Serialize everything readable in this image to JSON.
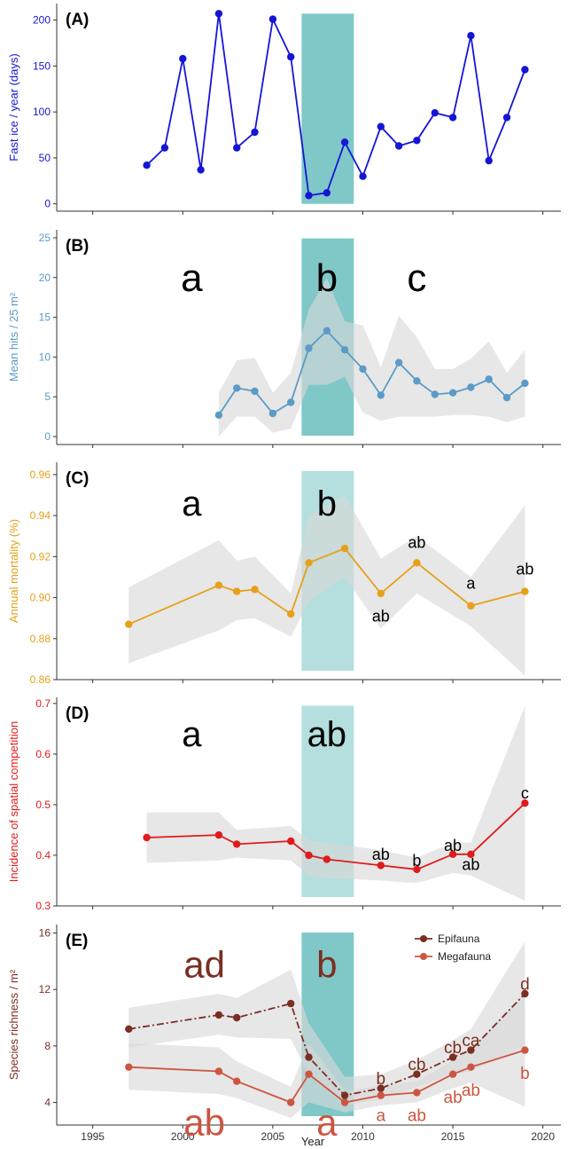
{
  "figure": {
    "xlabel": "Year",
    "xticks": [
      1995,
      2000,
      2005,
      2010,
      2015,
      2020
    ],
    "xlim": [
      1993,
      2021
    ],
    "shade_years": [
      2006.6,
      2009.5
    ],
    "colors": {
      "shade": "#4db3b1",
      "band": "#d9d9d9",
      "axis": "#333333",
      "fast_ice": "#1515d6",
      "mean_hits": "#5b9bc6",
      "mortality": "#e6a019",
      "competition": "#e01b1b",
      "epifauna": "#7b2e22",
      "megafauna": "#cc5540"
    }
  },
  "chart_data": [
    {
      "id": "A",
      "type": "line",
      "panel_label": "(A)",
      "ylabel": "Fast ice / year (days)",
      "ylim": [
        -8,
        218
      ],
      "yticks": [
        0,
        50,
        100,
        150,
        200
      ],
      "tick_labels": [
        "0",
        "50",
        "100",
        "150",
        "200"
      ],
      "shade_alpha": 0.72,
      "series": [
        {
          "color_key": "fast_ice",
          "dashed": false,
          "x": [
            1998,
            1999,
            2000,
            2001,
            2002,
            2003,
            2004,
            2005,
            2006,
            2007,
            2008,
            2009,
            2010,
            2011,
            2012,
            2013,
            2014,
            2015,
            2016,
            2017,
            2018,
            2019
          ],
          "y": [
            42,
            61,
            158,
            37,
            207,
            61,
            78,
            201,
            160,
            9,
            12,
            67,
            30,
            84,
            63,
            69,
            99,
            94,
            183,
            47,
            94,
            146
          ]
        }
      ],
      "group_letters": [],
      "point_letters": []
    },
    {
      "id": "B",
      "type": "line",
      "panel_label": "(B)",
      "ylabel": "Mean hits / 25 m²",
      "ylim": [
        -1,
        26
      ],
      "yticks": [
        0,
        5,
        10,
        15,
        20,
        25
      ],
      "tick_labels": [
        "0",
        "5",
        "10",
        "15",
        "20",
        "25"
      ],
      "shade_alpha": 0.72,
      "series": [
        {
          "color_key": "mean_hits",
          "dashed": false,
          "x": [
            2002,
            2003,
            2004,
            2005,
            2006,
            2007,
            2008,
            2009,
            2010,
            2011,
            2012,
            2013,
            2014,
            2015,
            2016,
            2017,
            2018,
            2019
          ],
          "y": [
            2.7,
            6.1,
            5.7,
            2.9,
            4.3,
            11.1,
            13.3,
            10.9,
            8.5,
            5.2,
            9.3,
            7.0,
            5.3,
            5.5,
            6.2,
            7.2,
            4.9,
            6.7
          ],
          "lower": [
            0.0,
            2.5,
            2.5,
            0.5,
            1.0,
            6.5,
            6.5,
            7.5,
            3.0,
            2.0,
            2.5,
            2.5,
            2.5,
            2.7,
            2.7,
            2.5,
            1.8,
            2.5
          ],
          "upper": [
            5.5,
            9.6,
            9.9,
            5.5,
            8.0,
            16.0,
            19.9,
            14.5,
            14.0,
            8.7,
            15.2,
            12.5,
            8.5,
            8.5,
            9.8,
            12.0,
            8.0,
            10.9
          ]
        }
      ],
      "group_letters": [
        {
          "text": "a",
          "x": 2000.5,
          "y": 20,
          "color_key": "axis"
        },
        {
          "text": "b",
          "x": 2008.0,
          "y": 20,
          "color_key": "axis"
        },
        {
          "text": "c",
          "x": 2013.0,
          "y": 20,
          "color_key": "axis"
        }
      ],
      "point_letters": []
    },
    {
      "id": "C",
      "type": "line",
      "panel_label": "(C)",
      "ylabel": "Annual mortality (%)",
      "ylim": [
        0.86,
        0.966
      ],
      "yticks": [
        0.86,
        0.88,
        0.9,
        0.92,
        0.94,
        0.96
      ],
      "tick_labels": [
        "0.86",
        "0.88",
        "0.90",
        "0.92",
        "0.94",
        "0.96"
      ],
      "shade_alpha": 0.42,
      "series": [
        {
          "color_key": "mortality",
          "dashed": false,
          "x": [
            1997,
            2002,
            2003,
            2004,
            2006,
            2007,
            2009,
            2011,
            2013,
            2016,
            2019
          ],
          "y": [
            0.887,
            0.906,
            0.903,
            0.904,
            0.892,
            0.917,
            0.924,
            0.902,
            0.917,
            0.896,
            0.903
          ],
          "lower": [
            0.868,
            0.884,
            0.889,
            0.89,
            0.881,
            0.898,
            0.91,
            0.885,
            0.902,
            0.886,
            0.862
          ],
          "upper": [
            0.905,
            0.928,
            0.918,
            0.92,
            0.902,
            0.94,
            0.95,
            0.919,
            0.93,
            0.91,
            0.945
          ]
        }
      ],
      "group_letters": [
        {
          "text": "a",
          "x": 2000.5,
          "y": 0.946,
          "color_key": "axis"
        },
        {
          "text": "b",
          "x": 2008.0,
          "y": 0.946,
          "color_key": "axis"
        }
      ],
      "point_letters": [
        {
          "text": "ab",
          "x": 2011,
          "y": 0.891,
          "color_key": "axis"
        },
        {
          "text": "ab",
          "x": 2013,
          "y": 0.927,
          "color_key": "axis"
        },
        {
          "text": "a",
          "x": 2016,
          "y": 0.907,
          "color_key": "axis"
        },
        {
          "text": "ab",
          "x": 2019,
          "y": 0.914,
          "color_key": "axis"
        }
      ]
    },
    {
      "id": "D",
      "type": "line",
      "panel_label": "(D)",
      "ylabel": "Incidence of spatial competition",
      "ylim": [
        0.3,
        0.712
      ],
      "yticks": [
        0.3,
        0.4,
        0.5,
        0.6,
        0.7
      ],
      "tick_labels": [
        "0.3",
        "0.4",
        "0.5",
        "0.6",
        "0.7"
      ],
      "shade_alpha": 0.42,
      "series": [
        {
          "color_key": "competition",
          "dashed": false,
          "x": [
            1998,
            2002,
            2003,
            2006,
            2007,
            2008,
            2011,
            2013,
            2015,
            2016,
            2019
          ],
          "y": [
            0.435,
            0.44,
            0.422,
            0.428,
            0.4,
            0.392,
            0.38,
            0.372,
            0.402,
            0.402,
            0.503
          ],
          "lower": [
            0.385,
            0.39,
            0.395,
            0.39,
            0.36,
            0.355,
            0.35,
            0.345,
            0.365,
            0.36,
            0.31
          ],
          "upper": [
            0.485,
            0.485,
            0.45,
            0.458,
            0.43,
            0.425,
            0.41,
            0.395,
            0.425,
            0.425,
            0.695
          ]
        }
      ],
      "group_letters": [
        {
          "text": "a",
          "x": 2000.5,
          "y": 0.64,
          "color_key": "axis"
        },
        {
          "text": "ab",
          "x": 2008.0,
          "y": 0.64,
          "color_key": "axis"
        }
      ],
      "point_letters": [
        {
          "text": "ab",
          "x": 2011,
          "y": 0.402,
          "color_key": "axis"
        },
        {
          "text": "b",
          "x": 2013,
          "y": 0.39,
          "color_key": "axis"
        },
        {
          "text": "ab",
          "x": 2015,
          "y": 0.42,
          "color_key": "axis"
        },
        {
          "text": "ab",
          "x": 2016,
          "y": 0.382,
          "color_key": "axis"
        },
        {
          "text": "c",
          "x": 2019,
          "y": 0.523,
          "color_key": "axis"
        }
      ]
    },
    {
      "id": "E",
      "type": "line",
      "panel_label": "(E)",
      "ylabel": "Species richness / m²",
      "ylim": [
        2.4,
        16.6
      ],
      "yticks": [
        4,
        8,
        12,
        16
      ],
      "tick_labels": [
        "4",
        "8",
        "12",
        "16"
      ],
      "shade_alpha": 0.72,
      "legend": {
        "position": "top-right"
      },
      "series": [
        {
          "name": "Epifauna",
          "color_key": "epifauna",
          "dashed": true,
          "x": [
            1997,
            2002,
            2003,
            2006,
            2007,
            2009,
            2011,
            2013,
            2015,
            2016,
            2019
          ],
          "y": [
            9.2,
            10.2,
            10.0,
            11.0,
            7.2,
            4.5,
            5.0,
            6.0,
            7.2,
            7.7,
            11.7
          ],
          "lower": [
            7.9,
            8.8,
            8.6,
            8.5,
            5.9,
            3.8,
            4.2,
            5.1,
            6.0,
            6.2,
            8.0
          ],
          "upper": [
            10.7,
            11.7,
            11.4,
            13.4,
            9.6,
            5.8,
            6.0,
            7.0,
            8.4,
            9.2,
            15.4
          ]
        },
        {
          "name": "Megafauna",
          "color_key": "megafauna",
          "dashed": false,
          "x": [
            1997,
            2002,
            2003,
            2006,
            2007,
            2009,
            2011,
            2013,
            2015,
            2016,
            2019
          ],
          "y": [
            6.5,
            6.2,
            5.5,
            4.0,
            6.0,
            4.0,
            4.5,
            4.7,
            6.0,
            6.5,
            7.7
          ],
          "lower": [
            4.9,
            4.6,
            4.3,
            2.9,
            4.0,
            3.3,
            3.8,
            4.0,
            5.0,
            5.4,
            3.7
          ],
          "upper": [
            8.2,
            7.9,
            6.9,
            5.1,
            8.2,
            4.8,
            5.2,
            5.5,
            7.0,
            7.7,
            11.7
          ]
        }
      ],
      "group_letters": [
        {
          "text": "ad",
          "x": 2001.2,
          "y": 13.8,
          "color_key": "epifauna"
        },
        {
          "text": "b",
          "x": 2008.0,
          "y": 13.8,
          "color_key": "epifauna"
        },
        {
          "text": "ab",
          "x": 2001.2,
          "y": 2.6,
          "color_key": "megafauna"
        },
        {
          "text": "a",
          "x": 2008.0,
          "y": 2.6,
          "color_key": "megafauna"
        }
      ],
      "point_letters": [
        {
          "text": "b",
          "x": 2011,
          "y": 5.7,
          "color_key": "epifauna"
        },
        {
          "text": "cb",
          "x": 2013,
          "y": 6.7,
          "color_key": "epifauna"
        },
        {
          "text": "cb",
          "x": 2015,
          "y": 7.9,
          "color_key": "epifauna"
        },
        {
          "text": "ca",
          "x": 2016,
          "y": 8.4,
          "color_key": "epifauna"
        },
        {
          "text": "d",
          "x": 2019,
          "y": 12.4,
          "color_key": "epifauna"
        },
        {
          "text": "a",
          "x": 2011,
          "y": 3.1,
          "color_key": "megafauna"
        },
        {
          "text": "ab",
          "x": 2013,
          "y": 3.1,
          "color_key": "megafauna"
        },
        {
          "text": "ab",
          "x": 2015,
          "y": 4.4,
          "color_key": "megafauna"
        },
        {
          "text": "ab",
          "x": 2016,
          "y": 4.9,
          "color_key": "megafauna"
        },
        {
          "text": "b",
          "x": 2019,
          "y": 6.1,
          "color_key": "megafauna"
        }
      ]
    }
  ]
}
